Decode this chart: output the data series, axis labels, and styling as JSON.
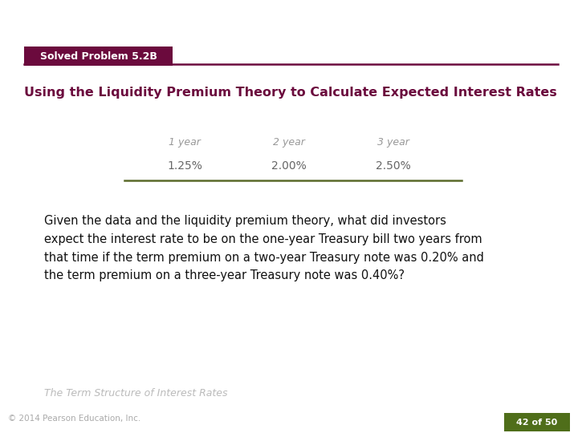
{
  "title": "Using the Liquidity Premium Theory to Calculate Expected Interest Rates",
  "badge_text": "Solved Problem 5.2B",
  "badge_bg_color": "#6B0A3D",
  "badge_text_color": "#FFFFFF",
  "title_color": "#6B0A3D",
  "header_line_color": "#6B0A3D",
  "table_headers": [
    "1 year",
    "2 year",
    "3 year"
  ],
  "table_values": [
    "1.25%",
    "2.00%",
    "2.50%"
  ],
  "table_header_color": "#999999",
  "table_value_color": "#666666",
  "table_line_color": "#5B6B2A",
  "body_text": "Given the data and the liquidity premium theory, what did investors\nexpect the interest rate to be on the one-year Treasury bill two years from\nthat time if the term premium on a two-year Treasury note was 0.20% and\nthe term premium on a three-year Treasury note was 0.40%?",
  "body_text_color": "#111111",
  "footer_text": "The Term Structure of Interest Rates",
  "footer_text_color": "#BBBBBB",
  "copyright_text": "© 2014 Pearson Education, Inc.",
  "copyright_color": "#AAAAAA",
  "page_badge_text": "42 of 50",
  "page_badge_bg": "#4F6E1A",
  "page_badge_color": "#FFFFFF",
  "bg_color": "#FFFFFF"
}
